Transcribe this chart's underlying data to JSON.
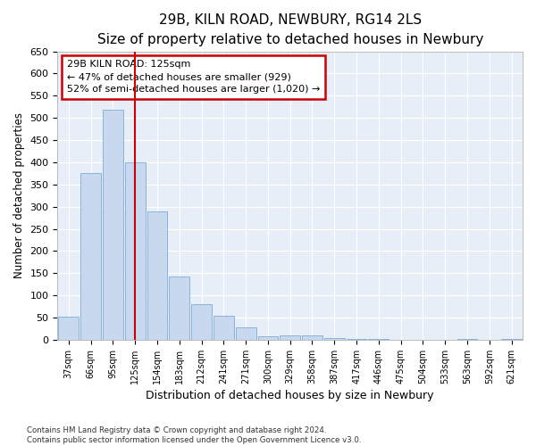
{
  "title1": "29B, KILN ROAD, NEWBURY, RG14 2LS",
  "title2": "Size of property relative to detached houses in Newbury",
  "xlabel": "Distribution of detached houses by size in Newbury",
  "ylabel": "Number of detached properties",
  "categories": [
    "37sqm",
    "66sqm",
    "95sqm",
    "125sqm",
    "154sqm",
    "183sqm",
    "212sqm",
    "241sqm",
    "271sqm",
    "300sqm",
    "329sqm",
    "358sqm",
    "387sqm",
    "417sqm",
    "446sqm",
    "475sqm",
    "504sqm",
    "533sqm",
    "563sqm",
    "592sqm",
    "621sqm"
  ],
  "values": [
    52,
    375,
    519,
    400,
    290,
    143,
    80,
    55,
    28,
    7,
    10,
    10,
    3,
    2,
    1,
    0,
    0,
    0,
    2,
    0,
    1
  ],
  "bar_color": "#c8d9ef",
  "bar_edge_color": "#7aadd4",
  "vline_x_index": 3,
  "vline_color": "#cc0000",
  "annotation_line1": "29B KILN ROAD: 125sqm",
  "annotation_line2": "← 47% of detached houses are smaller (929)",
  "annotation_line3": "52% of semi-detached houses are larger (1,020) →",
  "annotation_box_color": "#ffffff",
  "annotation_box_edge": "#cc0000",
  "ylim": [
    0,
    650
  ],
  "yticks": [
    0,
    50,
    100,
    150,
    200,
    250,
    300,
    350,
    400,
    450,
    500,
    550,
    600,
    650
  ],
  "footer1": "Contains HM Land Registry data © Crown copyright and database right 2024.",
  "footer2": "Contains public sector information licensed under the Open Government Licence v3.0.",
  "fig_bg_color": "#ffffff",
  "plot_bg_color": "#e8eef7",
  "grid_color": "#ffffff",
  "title1_fontsize": 11,
  "title2_fontsize": 10
}
